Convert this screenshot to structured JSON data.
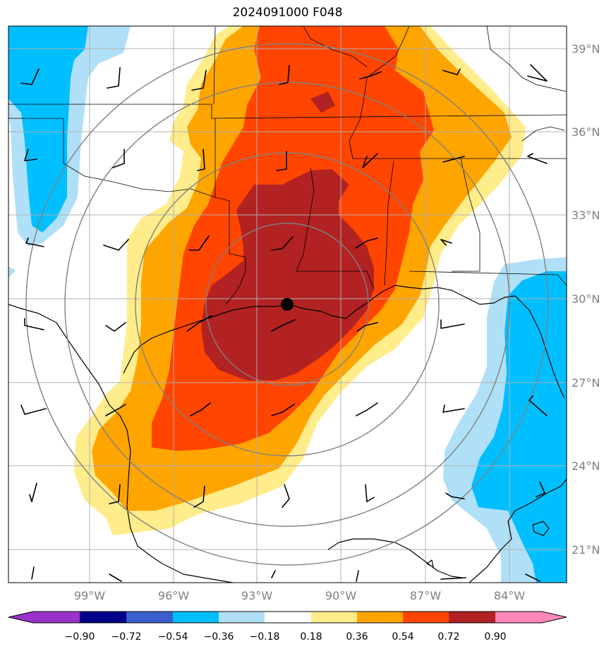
{
  "title": "2024091000 F048",
  "map": {
    "longitude_labels": [
      "99°W",
      "96°W",
      "93°W",
      "90°W",
      "87°W",
      "84°W"
    ],
    "latitude_labels": [
      "39°N",
      "36°N",
      "33°N",
      "30°N",
      "27°N",
      "24°N",
      "21°N"
    ],
    "center_marker": "storm-center-dot",
    "contour_rings": 4,
    "wind_barbs": "overlay",
    "colors": {
      "dark_red": "#b22222",
      "orange_red": "#ff4500",
      "orange": "#ffa500",
      "light_yellow": "#ffec8b",
      "light_blue": "#b0e0f8",
      "deep_sky_blue": "#00bfff",
      "grid": "#b0b0b0",
      "rings": "#808080"
    }
  },
  "colorbar": {
    "tick_labels": [
      "−0.90",
      "−0.72",
      "−0.54",
      "−0.36",
      "−0.18",
      "0.18",
      "0.36",
      "0.54",
      "0.72",
      "0.90"
    ],
    "colors": [
      "#9932cc",
      "#00008b",
      "#3a5fcd",
      "#00bfff",
      "#b0e0f8",
      "#ffffff",
      "#ffec8b",
      "#ffa500",
      "#ff4500",
      "#b22222",
      "#ff88bb"
    ]
  }
}
